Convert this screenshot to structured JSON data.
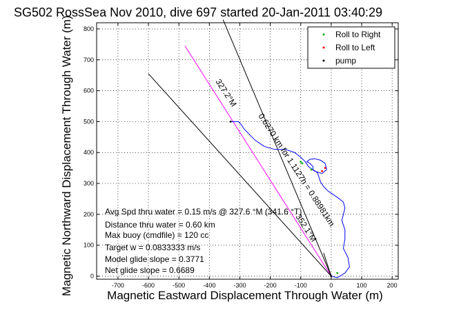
{
  "title": "SG502 RossSea Nov 2010, dive 697 started 20-Jan-2011 03:40:29",
  "xlabel": "Magnetic Eastward Displacement Through Water (m)",
  "ylabel": "Magnetic Northward Displacement Through Water (m)",
  "legend": {
    "position": "top-right",
    "items": [
      {
        "label": "Roll to Right",
        "color": "#00aa00"
      },
      {
        "label": "Roll to Left",
        "color": "#ff0000"
      },
      {
        "label": "pump",
        "color": "#000000"
      }
    ]
  },
  "stats": [
    "Avg Spd thru water = 0.15 m/s @ 327.6 °M (341.6 °T)",
    "Distance thru water = 0.60 km",
    "Max buoy (cmdfile) = 120 cc",
    "Target w = 0.0833333 m/s",
    "Model glide slope = 0.3771",
    "Net glide slope = 0.6689"
  ],
  "annotations": {
    "heading_label": "327.2°M",
    "vector_label": "0.6270 km for 1.1127h = 0.88981km",
    "bound_label": "352.1°M"
  },
  "chart_data": {
    "type": "line",
    "title": "SG502 RossSea Nov 2010, dive 697 started 20-Jan-2011 03:40:29",
    "xlabel": "Magnetic Eastward Displacement Through Water (m)",
    "ylabel": "Magnetic Northward Displacement Through Water (m)",
    "xlim": [
      -770,
      220
    ],
    "ylim": [
      -10,
      820
    ],
    "xticks": [
      -700,
      -600,
      -500,
      -400,
      -300,
      -200,
      -100,
      0,
      100,
      200
    ],
    "yticks": [
      0,
      100,
      200,
      300,
      400,
      500,
      600,
      700,
      800
    ],
    "grid": true,
    "track": {
      "color": "#0000ff",
      "x": [
        0,
        20,
        45,
        60,
        55,
        40,
        45,
        45,
        35,
        45,
        40,
        20,
        5,
        -10,
        -25,
        -35,
        -40,
        -45,
        -60,
        -60,
        -70,
        -80,
        -70,
        -55,
        -35,
        -20,
        -15,
        -30,
        -55,
        -75,
        -85,
        -100,
        -120,
        -150,
        -185,
        -220,
        -250,
        -270,
        -285,
        -295,
        -305,
        -315,
        -330
      ],
      "y": [
        0,
        -5,
        10,
        30,
        60,
        90,
        120,
        150,
        180,
        220,
        240,
        255,
        265,
        275,
        290,
        305,
        320,
        335,
        345,
        355,
        365,
        370,
        378,
        380,
        375,
        365,
        345,
        332,
        340,
        355,
        370,
        385,
        400,
        410,
        410,
        420,
        440,
        460,
        475,
        490,
        500,
        500,
        500
      ]
    },
    "reference_lines": [
      {
        "name": "heading",
        "color": "#ff00ff",
        "x": [
          0,
          -480
        ],
        "y": [
          0,
          745
        ]
      },
      {
        "name": "bound-1",
        "color": "#000000",
        "x": [
          0,
          -355
        ],
        "y": [
          0,
          830
        ]
      },
      {
        "name": "bound-2",
        "color": "#000000",
        "x": [
          0,
          -600
        ],
        "y": [
          0,
          655
        ]
      },
      {
        "name": "vector",
        "color": "#000000",
        "x": [
          0,
          -25
        ],
        "y": [
          0,
          75
        ]
      }
    ],
    "markers": [
      {
        "name": "roll-right",
        "color": "#00aa00",
        "x": [
          -100,
          -95,
          20,
          -65
        ],
        "y": [
          370,
          365,
          10,
          345
        ]
      },
      {
        "name": "roll-left",
        "color": "#ff0000",
        "x": [
          -20,
          -30
        ],
        "y": [
          350,
          340
        ]
      },
      {
        "name": "pump",
        "color": "#000000",
        "x": [
          0,
          -330
        ],
        "y": [
          0,
          500
        ]
      }
    ]
  }
}
